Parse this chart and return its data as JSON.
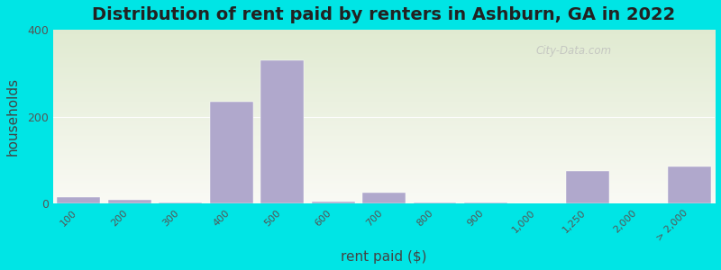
{
  "title": "Distribution of rent paid by renters in Ashburn, GA in 2022",
  "xlabel": "rent paid ($)",
  "ylabel": "households",
  "bar_color": "#b0a8cc",
  "background_outer": "#00e5e5",
  "categories": [
    "100",
    "200",
    "300",
    "400",
    "500",
    "600",
    "700",
    "800",
    "900",
    "1,000",
    "1,250",
    "2,000",
    "> 2,000"
  ],
  "values": [
    15,
    10,
    2,
    235,
    330,
    5,
    25,
    3,
    2,
    0,
    75,
    0,
    85
  ],
  "ylim": [
    0,
    400
  ],
  "yticks": [
    0,
    200,
    400
  ],
  "watermark_text": "City-Data.com",
  "title_fontsize": 14,
  "label_fontsize": 11,
  "tick_fontsize": 8,
  "ytick_fontsize": 9
}
